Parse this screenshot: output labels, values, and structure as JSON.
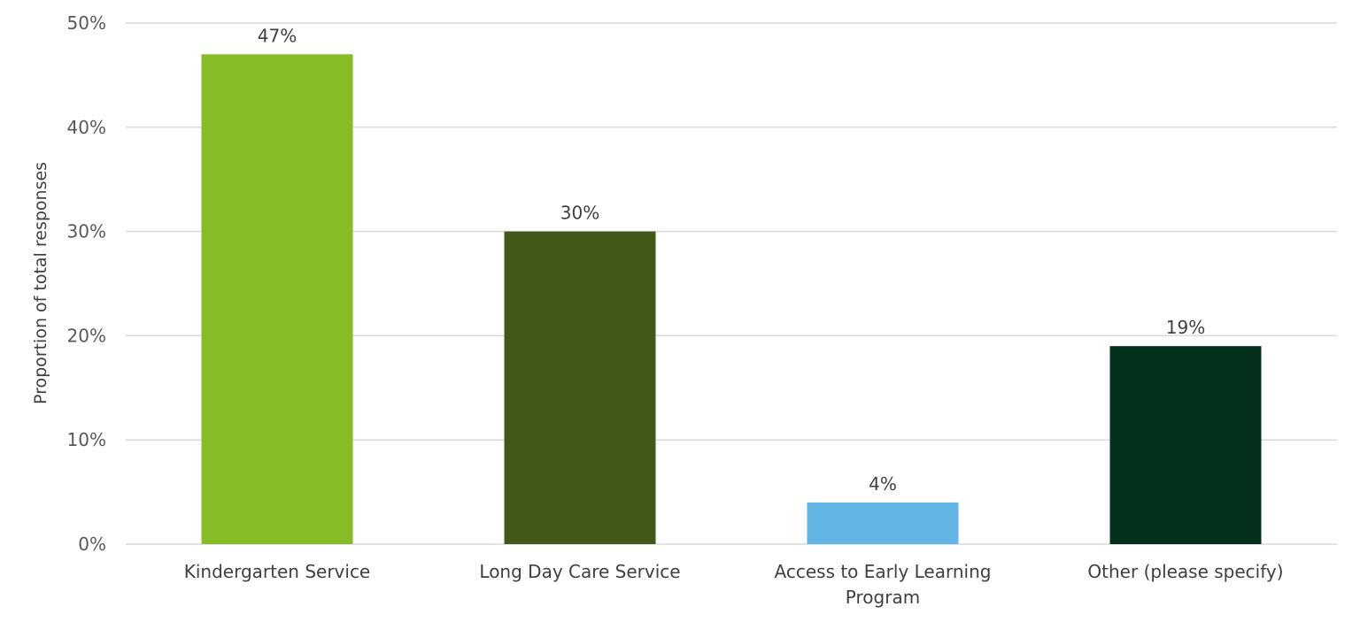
{
  "chart_data": {
    "type": "bar",
    "title": "",
    "xlabel": "",
    "ylabel": "Proportion of total responses",
    "ylim": [
      0,
      50
    ],
    "yticks": [
      0,
      10,
      20,
      30,
      40,
      50
    ],
    "ytick_labels": [
      "0%",
      "10%",
      "20%",
      "30%",
      "40%",
      "50%"
    ],
    "grid": true,
    "legend": "none",
    "categories": [
      [
        "Kindergarten Service"
      ],
      [
        "Long Day Care Service"
      ],
      [
        "Access to Early Learning",
        "Program"
      ],
      [
        "Other (please specify)"
      ]
    ],
    "values": [
      47,
      30,
      4,
      19
    ],
    "data_labels": [
      "47%",
      "30%",
      "4%",
      "19%"
    ],
    "colors": [
      "#86bc25",
      "#43591a",
      "#62b5e5",
      "#04301e"
    ]
  }
}
